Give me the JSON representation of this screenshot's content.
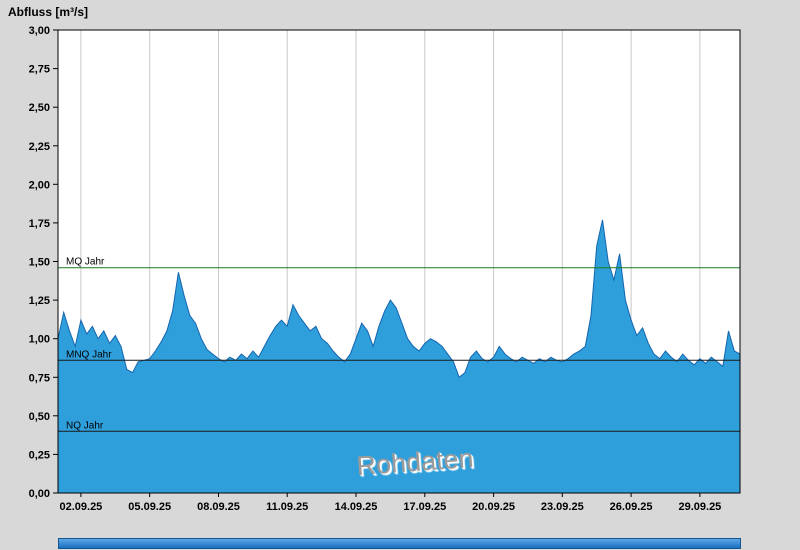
{
  "title": "Abfluss [m³/s]",
  "watermark": "Rohdaten",
  "colors": {
    "background": "#d8d8d8",
    "plot_bg": "#ffffff",
    "grid": "#c9c9c9",
    "area_fill": "#2f9fdc",
    "area_stroke": "#1565ad",
    "mq_line": "#1a7a1a",
    "ref_line": "#1a1a1a",
    "text": "#000000"
  },
  "y_axis": {
    "min": 0,
    "max": 3,
    "step": 0.25
  },
  "x_axis": {
    "tick_days": [
      1,
      4,
      7,
      10,
      13,
      16,
      19,
      22,
      25,
      28
    ],
    "tick_labels": [
      "02.09.25",
      "05.09.25",
      "08.09.25",
      "11.09.25",
      "14.09.25",
      "17.09.25",
      "20.09.25",
      "23.09.25",
      "26.09.25",
      "29.09.25"
    ]
  },
  "reference_lines": [
    {
      "label": "MQ Jahr",
      "value": 1.46,
      "color_key": "mq_line"
    },
    {
      "label": "MNQ Jahr",
      "value": 0.86,
      "color_key": "ref_line"
    },
    {
      "label": "NQ Jahr",
      "value": 0.4,
      "color_key": "ref_line"
    }
  ],
  "chart_data": {
    "type": "area",
    "title": "Abfluss [m³/s]",
    "ylabel": "Abfluss [m³/s]",
    "ylim": [
      0,
      3
    ],
    "x_unit": "days from 01.09.25",
    "sample_step_days": 0.25,
    "total_days": 29.75,
    "values": [
      1.0,
      1.17,
      1.05,
      0.95,
      1.12,
      1.03,
      1.08,
      1.0,
      1.05,
      0.97,
      1.02,
      0.95,
      0.8,
      0.78,
      0.85,
      0.86,
      0.87,
      0.92,
      0.98,
      1.05,
      1.18,
      1.43,
      1.28,
      1.15,
      1.1,
      1.0,
      0.93,
      0.9,
      0.87,
      0.85,
      0.88,
      0.86,
      0.9,
      0.87,
      0.92,
      0.88,
      0.95,
      1.02,
      1.08,
      1.12,
      1.08,
      1.22,
      1.15,
      1.1,
      1.05,
      1.08,
      1.0,
      0.97,
      0.92,
      0.88,
      0.85,
      0.9,
      1.0,
      1.1,
      1.05,
      0.95,
      1.08,
      1.18,
      1.25,
      1.2,
      1.1,
      1.0,
      0.95,
      0.92,
      0.97,
      1.0,
      0.98,
      0.95,
      0.9,
      0.85,
      0.75,
      0.78,
      0.88,
      0.92,
      0.87,
      0.85,
      0.88,
      0.95,
      0.9,
      0.87,
      0.85,
      0.88,
      0.86,
      0.84,
      0.87,
      0.85,
      0.88,
      0.86,
      0.85,
      0.87,
      0.9,
      0.92,
      0.95,
      1.15,
      1.6,
      1.77,
      1.5,
      1.38,
      1.55,
      1.25,
      1.12,
      1.02,
      1.07,
      0.97,
      0.9,
      0.87,
      0.92,
      0.88,
      0.85,
      0.9,
      0.86,
      0.83,
      0.87,
      0.84,
      0.88,
      0.85,
      0.82,
      1.05,
      0.92,
      0.9
    ]
  }
}
